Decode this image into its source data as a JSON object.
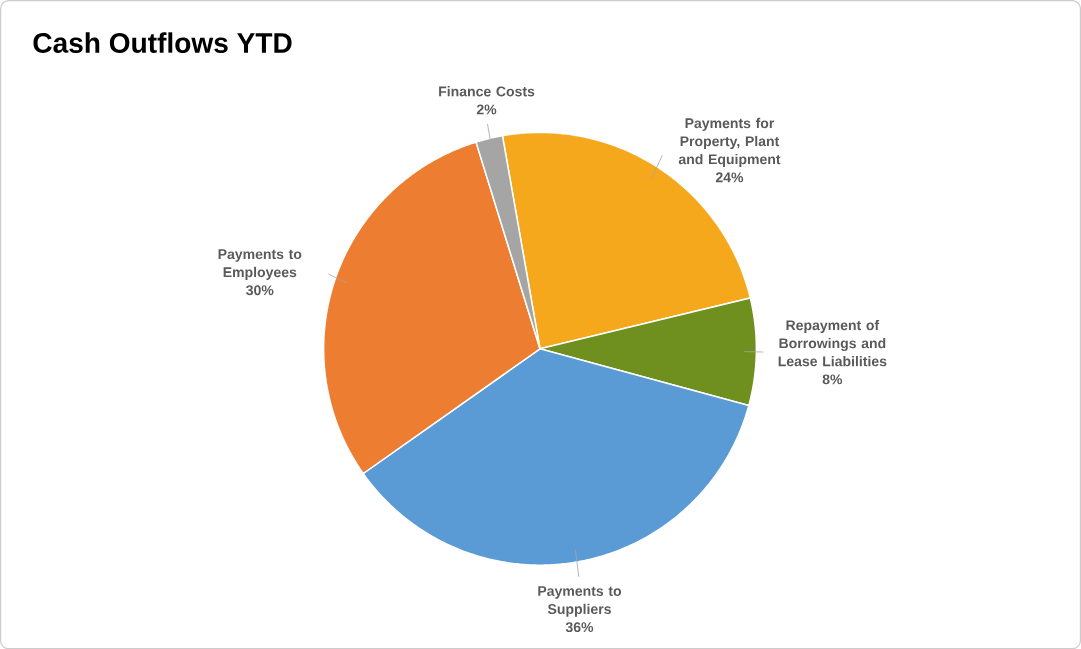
{
  "chart_data": {
    "type": "pie",
    "title": "Cash Outflows YTD",
    "categories": [
      "Payments for Property, Plant and Equipment",
      "Repayment of Borrowings and Lease Liabilities",
      "Payments to Suppliers",
      "Payments to Employees",
      "Finance Costs"
    ],
    "values": [
      24,
      8,
      36,
      30,
      2
    ],
    "value_labels": [
      "24%",
      "8%",
      "36%",
      "30%",
      "2%"
    ],
    "colors": [
      "#f5a81c",
      "#6f8f1e",
      "#5b9bd5",
      "#ed7d31",
      "#a5a5a5"
    ]
  }
}
